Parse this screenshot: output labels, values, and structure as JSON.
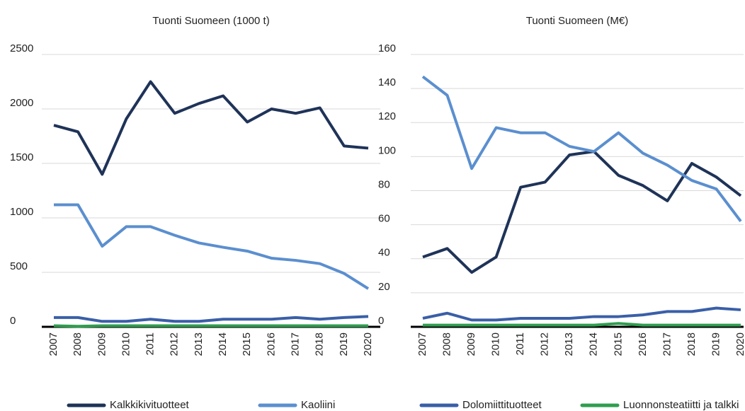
{
  "chart_data": [
    {
      "type": "line",
      "title": "Tuonti Suomeen (1000 t)",
      "categories": [
        "2007",
        "2008",
        "2009",
        "2010",
        "2011",
        "2012",
        "2013",
        "2014",
        "2015",
        "2016",
        "2017",
        "2018",
        "2019",
        "2020"
      ],
      "ylim": [
        0,
        2500
      ],
      "yticks": [
        0,
        500,
        1000,
        1500,
        2000,
        2500
      ],
      "grid": true,
      "series": [
        {
          "name": "Kalkkikivituotteet",
          "color": "#1f3358",
          "values": [
            1850,
            1790,
            1400,
            1910,
            2250,
            1960,
            2050,
            2120,
            1880,
            2000,
            1960,
            2010,
            1660,
            1640
          ]
        },
        {
          "name": "Kaoliini",
          "color": "#5b8fcf",
          "values": [
            1120,
            1120,
            740,
            920,
            920,
            840,
            770,
            730,
            695,
            630,
            610,
            580,
            490,
            350
          ]
        },
        {
          "name": "Dolomiittituotteet",
          "color": "#3a5fa8",
          "values": [
            85,
            85,
            50,
            50,
            70,
            50,
            50,
            70,
            70,
            70,
            85,
            70,
            85,
            95
          ]
        },
        {
          "name": "Luonnonsteatiitti ja talkki",
          "color": "#2e9e4f",
          "values": [
            10,
            5,
            10,
            10,
            10,
            10,
            10,
            10,
            10,
            10,
            10,
            10,
            10,
            10
          ]
        }
      ]
    },
    {
      "type": "line",
      "title": "Tuonti Suomeen (M€)",
      "categories": [
        "2007",
        "2008",
        "2009",
        "2010",
        "2011",
        "2012",
        "2013",
        "2014",
        "2015",
        "2016",
        "2017",
        "2018",
        "2019",
        "2020"
      ],
      "ylim": [
        0,
        160
      ],
      "yticks": [
        0,
        20,
        40,
        60,
        80,
        100,
        120,
        140,
        160
      ],
      "grid": true,
      "series": [
        {
          "color": "#1f3358",
          "values": [
            41,
            46,
            32,
            41,
            82,
            85,
            101,
            103,
            89,
            83,
            74,
            96,
            88,
            77
          ]
        },
        {
          "color": "#5b8fcf",
          "values": [
            147,
            136,
            93,
            117,
            114,
            114,
            106,
            103,
            114,
            102,
            95,
            86,
            81,
            62
          ]
        },
        {
          "color": "#3a5fa8",
          "values": [
            5,
            8,
            4,
            4,
            5,
            5,
            5,
            6,
            6,
            7,
            9,
            9,
            11,
            10
          ]
        },
        {
          "color": "#2e9e4f",
          "values": [
            1,
            1,
            1,
            1,
            1,
            1,
            1,
            1,
            2,
            1,
            1,
            1,
            1,
            1
          ]
        }
      ]
    }
  ]
}
